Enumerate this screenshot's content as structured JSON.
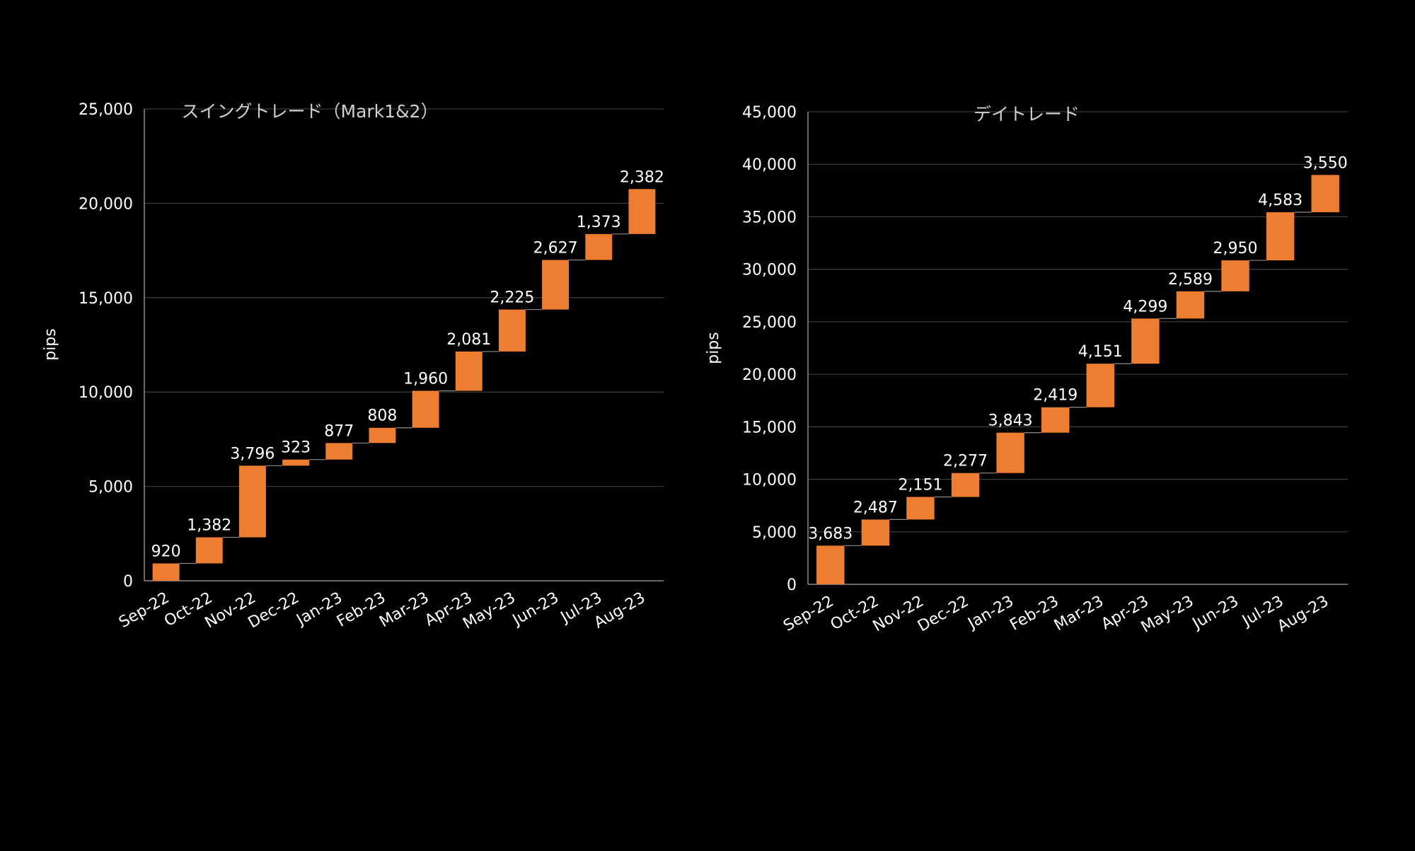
{
  "chart_data": [
    {
      "type": "waterfall",
      "title": "スイングトレード（Mark1&2）",
      "ylabel": "pips",
      "ylim": [
        0,
        25000
      ],
      "yticks": [
        0,
        5000,
        10000,
        15000,
        20000,
        25000
      ],
      "ytick_labels": [
        "0",
        "5,000",
        "10,000",
        "15,000",
        "20,000",
        "25,000"
      ],
      "categories": [
        "Sep-22",
        "Oct-22",
        "Nov-22",
        "Dec-22",
        "Jan-23",
        "Feb-23",
        "Mar-23",
        "Apr-23",
        "May-23",
        "Jun-23",
        "Jul-23",
        "Aug-23"
      ],
      "values": [
        920,
        1382,
        3796,
        323,
        877,
        808,
        1960,
        2081,
        2225,
        2627,
        1373,
        2382
      ],
      "value_labels": [
        "920",
        "1,382",
        "3,796",
        "323",
        "877",
        "808",
        "1,960",
        "2,081",
        "2,225",
        "2,627",
        "1,373",
        "2,382"
      ],
      "grid": true,
      "bar_color": "#ED7D31"
    },
    {
      "type": "waterfall",
      "title": "デイトレード",
      "ylabel": "pips",
      "ylim": [
        0,
        45000
      ],
      "yticks": [
        0,
        5000,
        10000,
        15000,
        20000,
        25000,
        30000,
        35000,
        40000,
        45000
      ],
      "ytick_labels": [
        "0",
        "5,000",
        "10,000",
        "15,000",
        "20,000",
        "25,000",
        "30,000",
        "35,000",
        "40,000",
        "45,000"
      ],
      "categories": [
        "Sep-22",
        "Oct-22",
        "Nov-22",
        "Dec-22",
        "Jan-23",
        "Feb-23",
        "Mar-23",
        "Apr-23",
        "May-23",
        "Jun-23",
        "Jul-23",
        "Aug-23"
      ],
      "values": [
        3683,
        2487,
        2151,
        2277,
        3843,
        2419,
        4151,
        4299,
        2589,
        2950,
        4583,
        3550
      ],
      "value_labels": [
        "3,683",
        "2,487",
        "2,151",
        "2,277",
        "3,843",
        "2,419",
        "4,151",
        "4,299",
        "2,589",
        "2,950",
        "4,583",
        "3,550"
      ],
      "grid": true,
      "bar_color": "#ED7D31"
    }
  ]
}
